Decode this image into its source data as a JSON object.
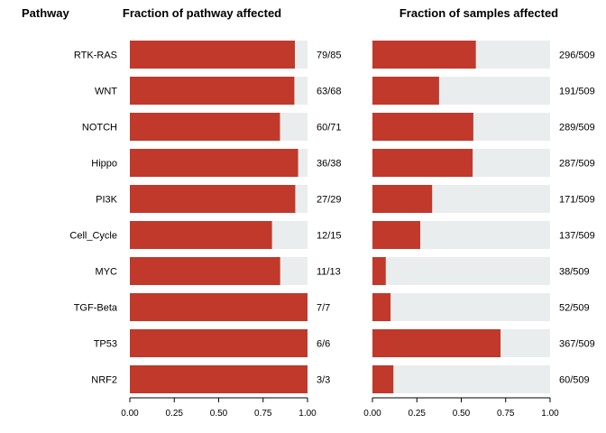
{
  "headers": {
    "pathway": "Pathway",
    "left": "Fraction of pathway affected",
    "right": "Fraction of samples affected"
  },
  "colors": {
    "bar": "#c0392b",
    "track": "#eaeded",
    "axis": "#000000"
  },
  "chart_data": [
    {
      "type": "bar",
      "orientation": "horizontal",
      "title": "Fraction of pathway affected",
      "categories": [
        "RTK-RAS",
        "WNT",
        "NOTCH",
        "Hippo",
        "PI3K",
        "Cell_Cycle",
        "MYC",
        "TGF-Beta",
        "TP53",
        "NRF2"
      ],
      "values": [
        0.929,
        0.926,
        0.845,
        0.947,
        0.931,
        0.8,
        0.846,
        1.0,
        1.0,
        1.0
      ],
      "data_labels": [
        "79/85",
        "63/68",
        "60/71",
        "36/38",
        "27/29",
        "12/15",
        "11/13",
        "7/7",
        "6/6",
        "3/3"
      ],
      "xlim": [
        0,
        1
      ],
      "xticks": [
        "0.00",
        "0.25",
        "0.50",
        "0.75",
        "1.00"
      ],
      "grid": false
    },
    {
      "type": "bar",
      "orientation": "horizontal",
      "title": "Fraction of samples affected",
      "categories": [
        "RTK-RAS",
        "WNT",
        "NOTCH",
        "Hippo",
        "PI3K",
        "Cell_Cycle",
        "MYC",
        "TGF-Beta",
        "TP53",
        "NRF2"
      ],
      "values": [
        0.582,
        0.375,
        0.568,
        0.564,
        0.336,
        0.269,
        0.075,
        0.102,
        0.721,
        0.118
      ],
      "data_labels": [
        "296/509",
        "191/509",
        "289/509",
        "287/509",
        "171/509",
        "137/509",
        "38/509",
        "52/509",
        "367/509",
        "60/509"
      ],
      "xlim": [
        0,
        1
      ],
      "xticks": [
        "0.00",
        "0.25",
        "0.50",
        "0.75",
        "1.00"
      ],
      "grid": false
    }
  ]
}
